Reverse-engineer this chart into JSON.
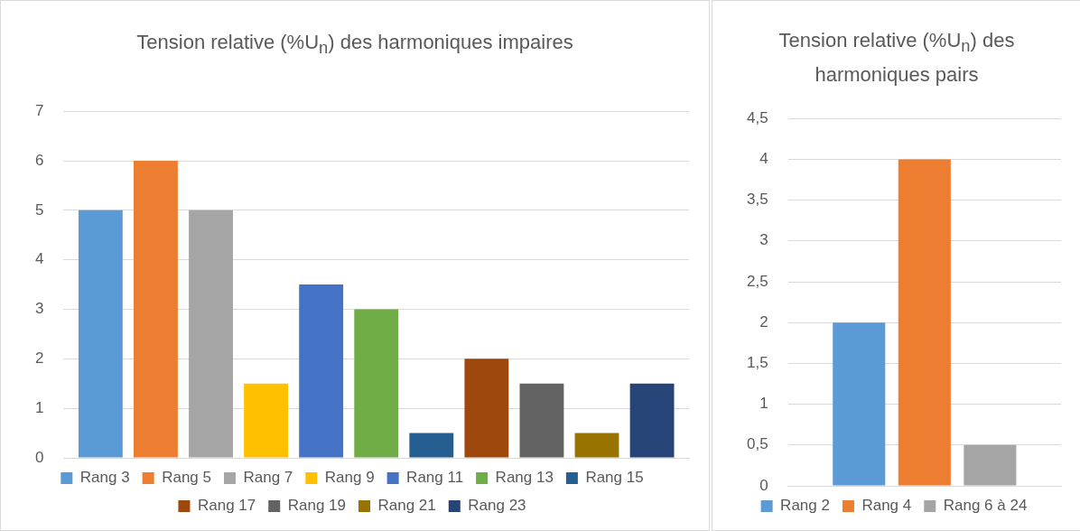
{
  "chart_data": [
    {
      "type": "bar",
      "title": "Tension relative (%U$_{n}$) des harmoniques impaires",
      "categories": [
        null
      ],
      "ylim": [
        0,
        7
      ],
      "yticks": [
        0,
        1,
        2,
        3,
        4,
        5,
        6,
        7
      ],
      "grid": "y",
      "legend": "bottom",
      "series": [
        {
          "name": "Rang 3",
          "color": "#5b9bd5",
          "values": [
            5
          ]
        },
        {
          "name": "Rang 5",
          "color": "#ed7d31",
          "values": [
            6
          ]
        },
        {
          "name": "Rang 7",
          "color": "#a5a5a5",
          "values": [
            5
          ]
        },
        {
          "name": "Rang 9",
          "color": "#ffc000",
          "values": [
            1.5
          ]
        },
        {
          "name": "Rang 11",
          "color": "#4472c4",
          "values": [
            3.5
          ]
        },
        {
          "name": "Rang 13",
          "color": "#70ad47",
          "values": [
            3
          ]
        },
        {
          "name": "Rang 15",
          "color": "#255e91",
          "values": [
            0.5
          ]
        },
        {
          "name": "Rang 17",
          "color": "#9e480e",
          "values": [
            2
          ]
        },
        {
          "name": "Rang 19",
          "color": "#636363",
          "values": [
            1.5
          ]
        },
        {
          "name": "Rang 21",
          "color": "#997300",
          "values": [
            0.5
          ]
        },
        {
          "name": "Rang 23",
          "color": "#264478",
          "values": [
            1.5
          ]
        }
      ]
    },
    {
      "type": "bar",
      "title": "Tension relative (%U$_{n}$) des harmoniques pairs",
      "categories": [
        null
      ],
      "ylim": [
        0,
        4.5
      ],
      "yticks": [
        0,
        {
          "value": 0.5,
          "label": "0,5"
        },
        1,
        {
          "value": 1.5,
          "label": "1,5"
        },
        2,
        {
          "value": 2.5,
          "label": "2,5"
        },
        3,
        {
          "value": 3.5,
          "label": "3,5"
        },
        4,
        {
          "value": 4.5,
          "label": "4,5"
        }
      ],
      "grid": "y",
      "legend": "bottom",
      "series": [
        {
          "name": "Rang 2",
          "color": "#5b9bd5",
          "values": [
            2
          ]
        },
        {
          "name": "Rang 4",
          "color": "#ed7d31",
          "values": [
            4
          ]
        },
        {
          "name": "Rang 6 à 24",
          "color": "#a5a5a5",
          "values": [
            0.5
          ]
        }
      ]
    }
  ]
}
